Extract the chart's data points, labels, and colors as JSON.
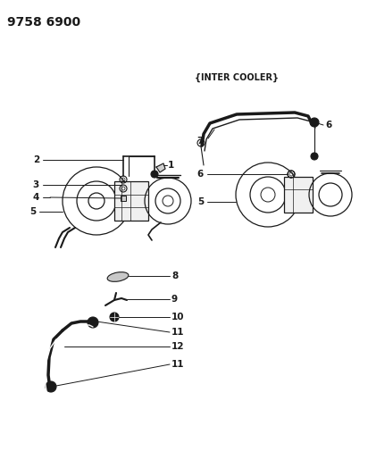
{
  "title": "9758 6900",
  "intercooler_label": "{INTER COOLER}",
  "bg_color": "#ffffff",
  "line_color": "#1a1a1a",
  "text_color": "#1a1a1a",
  "title_fontsize": 10,
  "label_fontsize": 7.5
}
